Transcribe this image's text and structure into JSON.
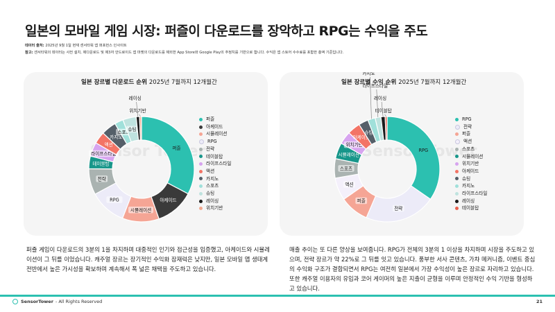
{
  "page": {
    "title": "일본의 모바일 게임 시장: 퍼즐이 다운로드를 장악하고 RPG는 수익을 주도",
    "source_label": "데이터 출처:",
    "source_text": " 2025년 9월 1일 현재 센서타워 앱 퍼포먼스 인사이트",
    "note_label": "참고:",
    "note_text": " 센서타워의 데이터는 사전 설치, 제다운로드 및 제3자 안드로이드 앱 마켓의 다운로드를 제외한 App Store와 Google Play의 추정치를 기반으로 합니다. 수익은 앱 스토어 수수료를 포함한 총액 기준입니다.",
    "watermark": "Sensor Tower",
    "footer_brand": "SensorTower",
    "footer_text": "- All Rights Reserved",
    "page_number": "21",
    "left_text": "퍼즐 게임이 다운로드의 3분의 1을 차지하며 대중적인 인기와 접근성을 입증했고, 아케이드와 시뮬레이션이 그 뒤를 이었습니다. 캐주얼 장르는 장기적인 수익화 잠재력은 낮지만, 일본 모바일 앱 생태계 전반에서 높은 가시성을 확보하며 계속해서 폭 넓은 채택을 주도하고 있습니다.",
    "right_text": "매출 추이는 또 다른 양상을 보여줍니다. RPG가 전체의 3분의 1 이상을 차지하며 시장을 주도하고 있으며, 전략 장르가 약 22%로 그 뒤를 잇고 있습니다. 풍부한 서사 콘텐츠, 가챠 메커니즘, 이벤트 중심의 수익화 구조가 결합되면서 RPG는 여전히 일본에서 가장 수익성이 높은 장르로 자리하고 있습니다. 또한 캐주얼 이용자의 유입과 코어 게이머의 높은 지출이 균형을 이루며 안정적인 수익 기반을 형성하고 있습니다."
  },
  "chart_data": [
    {
      "type": "pie",
      "variant": "donut",
      "title": "일본 장르별 다운로드 순위",
      "subtitle": "2025년 7월까지 12개월간",
      "legend_position": "right",
      "categories": [
        "퍼즐",
        "아케이드",
        "시뮬레이션",
        "RPG",
        "전략",
        "테이블탑",
        "라이프스타일",
        "액션",
        "카지노",
        "스포츠",
        "슈팅",
        "레이싱",
        "위치기반"
      ],
      "values": [
        32.0,
        11.6,
        11.0,
        11.0,
        7.8,
        3.8,
        4.2,
        3.6,
        4.5,
        2.6,
        4.0,
        1.0,
        0.6
      ],
      "colors": [
        "#2cc0b0",
        "#3a3a3a",
        "#f5a595",
        "#ecebf8",
        "#aab3b1",
        "#17968a",
        "#d7a4ef",
        "#f37466",
        "#555f69",
        "#a0e0da",
        "#bfe3df",
        "#1a1a1a",
        "#f0a78e"
      ],
      "slice_labels": [
        "퍼즐",
        "아케이드",
        "시뮬레이션",
        "RPG",
        "전략",
        "테이블탑",
        "라이프스타일",
        "액션",
        "카지노",
        "스포츠",
        "슈팅",
        "레이싱",
        "위치기반"
      ]
    },
    {
      "type": "pie",
      "variant": "donut",
      "title": "일본 장르별 수익 순위",
      "subtitle": "2025년 7월까지 12개월간",
      "legend_position": "right",
      "categories": [
        "RPG",
        "전략",
        "퍼즐",
        "액션",
        "스포츠",
        "시뮬레이션",
        "위치기반",
        "아케이드",
        "슈팅",
        "카지노",
        "라이프스타일",
        "레이싱",
        "테이블탑"
      ],
      "values": [
        35.0,
        22.0,
        9.0,
        7.0,
        6.0,
        5.0,
        4.0,
        4.0,
        3.0,
        2.3,
        1.8,
        1.3,
        0.6
      ],
      "colors": [
        "#2cc0b0",
        "#ecebf8",
        "#f5a595",
        "#f4f0fb",
        "#aab3b1",
        "#17968a",
        "#d7a4ef",
        "#f37466",
        "#555f69",
        "#a0e0da",
        "#bfe3df",
        "#1a1a1a",
        "#e8604e"
      ],
      "slice_labels": [
        "RPG",
        "전략",
        "퍼즐",
        "액션",
        "스포츠",
        "시뮬레이션",
        "위치기반",
        "아케이드",
        "슈팅",
        "카지노",
        "라이프스타일",
        "레이싱",
        "테이블탑"
      ]
    }
  ]
}
